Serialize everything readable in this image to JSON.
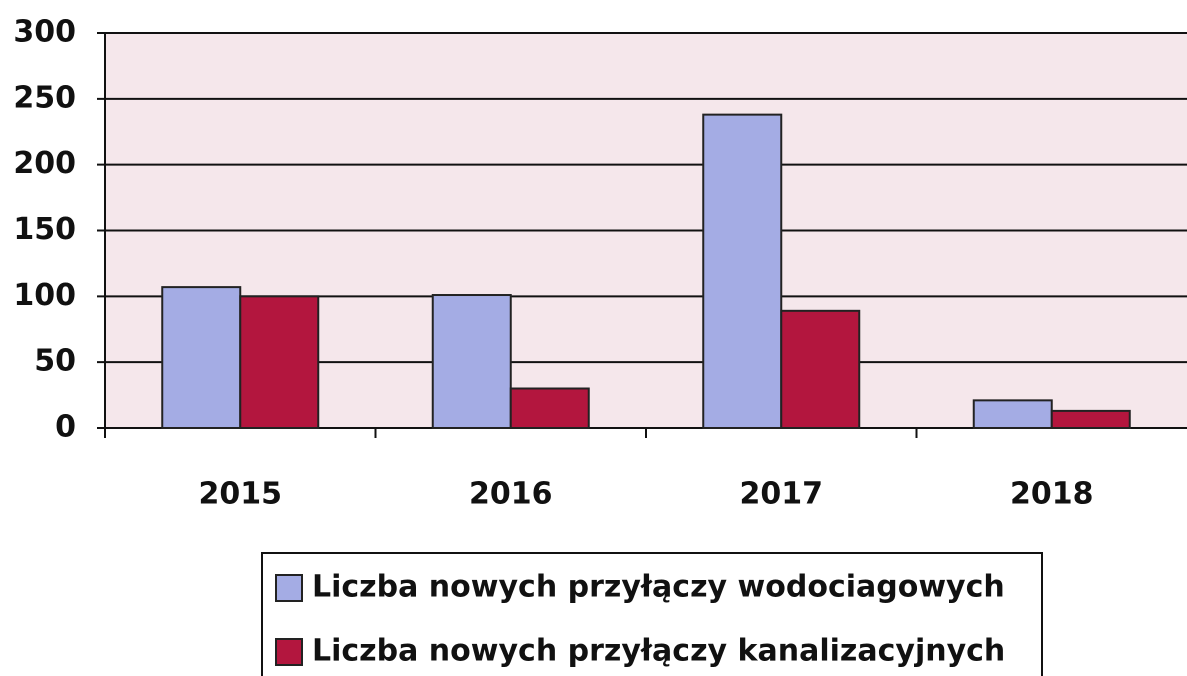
{
  "chart_data": {
    "type": "bar",
    "categories": [
      "2015",
      "2016",
      "2017",
      "2018"
    ],
    "series": [
      {
        "name": "Liczba nowych przyłączy wodociagowych",
        "color": "#a4ace4",
        "values": [
          107,
          101,
          238,
          21
        ]
      },
      {
        "name": "Liczba nowych przyłączy kanalizacyjnych",
        "color": "#b3163e",
        "values": [
          100,
          30,
          89,
          13
        ]
      }
    ],
    "ylim": [
      0,
      300
    ],
    "yticks": [
      0,
      50,
      100,
      150,
      200,
      250,
      300
    ],
    "grid": true,
    "legend": "bottom"
  }
}
